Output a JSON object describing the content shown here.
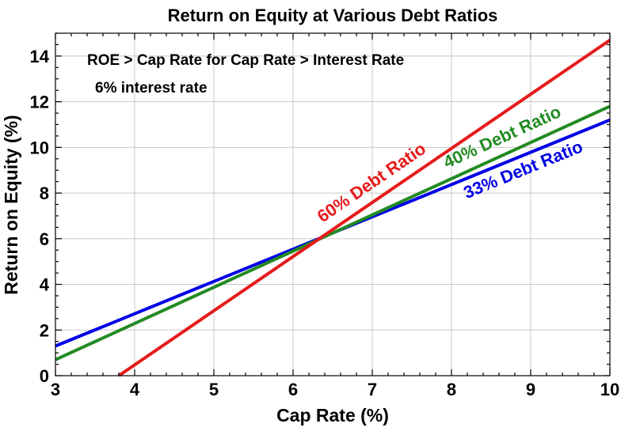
{
  "chart_data": {
    "type": "line",
    "title": "Return on Equity at Various Debt Ratios",
    "xlabel": "Cap Rate (%)",
    "ylabel": "Return on Equity (%)",
    "xlim": [
      3,
      10
    ],
    "ylim": [
      0,
      15
    ],
    "xticks": [
      3,
      4,
      5,
      6,
      7,
      8,
      9,
      10
    ],
    "yticks": [
      0,
      2,
      4,
      6,
      8,
      10,
      12,
      14
    ],
    "grid": true,
    "annotations": [
      "ROE > Cap Rate for Cap Rate > Interest Rate",
      "6% interest rate"
    ],
    "series": [
      {
        "name": "33% Debt Ratio",
        "color": "#0000e6",
        "x": [
          3,
          10
        ],
        "y": [
          1.3,
          11.2
        ]
      },
      {
        "name": "40% Debt Ratio",
        "color": "#228b22",
        "x": [
          3,
          10
        ],
        "y": [
          0.7,
          11.8
        ]
      },
      {
        "name": "60% Debt Ratio",
        "color": "#e61a1a",
        "x": [
          3.8,
          10
        ],
        "y": [
          0.0,
          14.7
        ]
      }
    ]
  }
}
